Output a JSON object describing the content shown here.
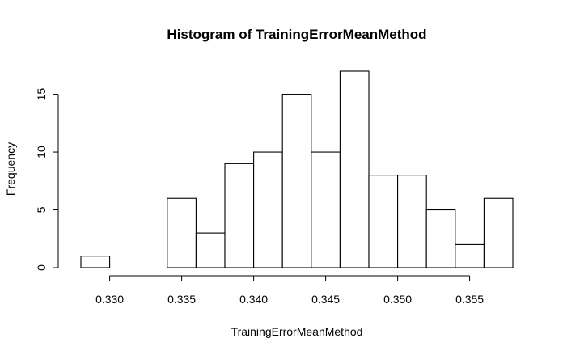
{
  "chart_data": {
    "type": "bar",
    "title": "Histogram of TrainingErrorMeanMethod",
    "xlabel": "TrainingErrorMeanMethod",
    "ylabel": "Frequency",
    "bin_start": 0.328,
    "bin_width": 0.002,
    "values": [
      1,
      0,
      0,
      6,
      3,
      9,
      10,
      15,
      10,
      17,
      8,
      8,
      5,
      2,
      6
    ],
    "xlim": [
      0.328,
      0.358
    ],
    "ylim": [
      0,
      17
    ],
    "x_ticks": [
      0.33,
      0.335,
      0.34,
      0.345,
      0.35,
      0.355
    ],
    "x_tick_labels": [
      "0.330",
      "0.335",
      "0.340",
      "0.345",
      "0.350",
      "0.355"
    ],
    "y_ticks": [
      0,
      5,
      10,
      15
    ],
    "y_tick_labels": [
      "0",
      "5",
      "10",
      "15"
    ],
    "grid": false,
    "legend": "none",
    "bar_fill": "#ffffff",
    "bar_stroke": "#000000"
  }
}
